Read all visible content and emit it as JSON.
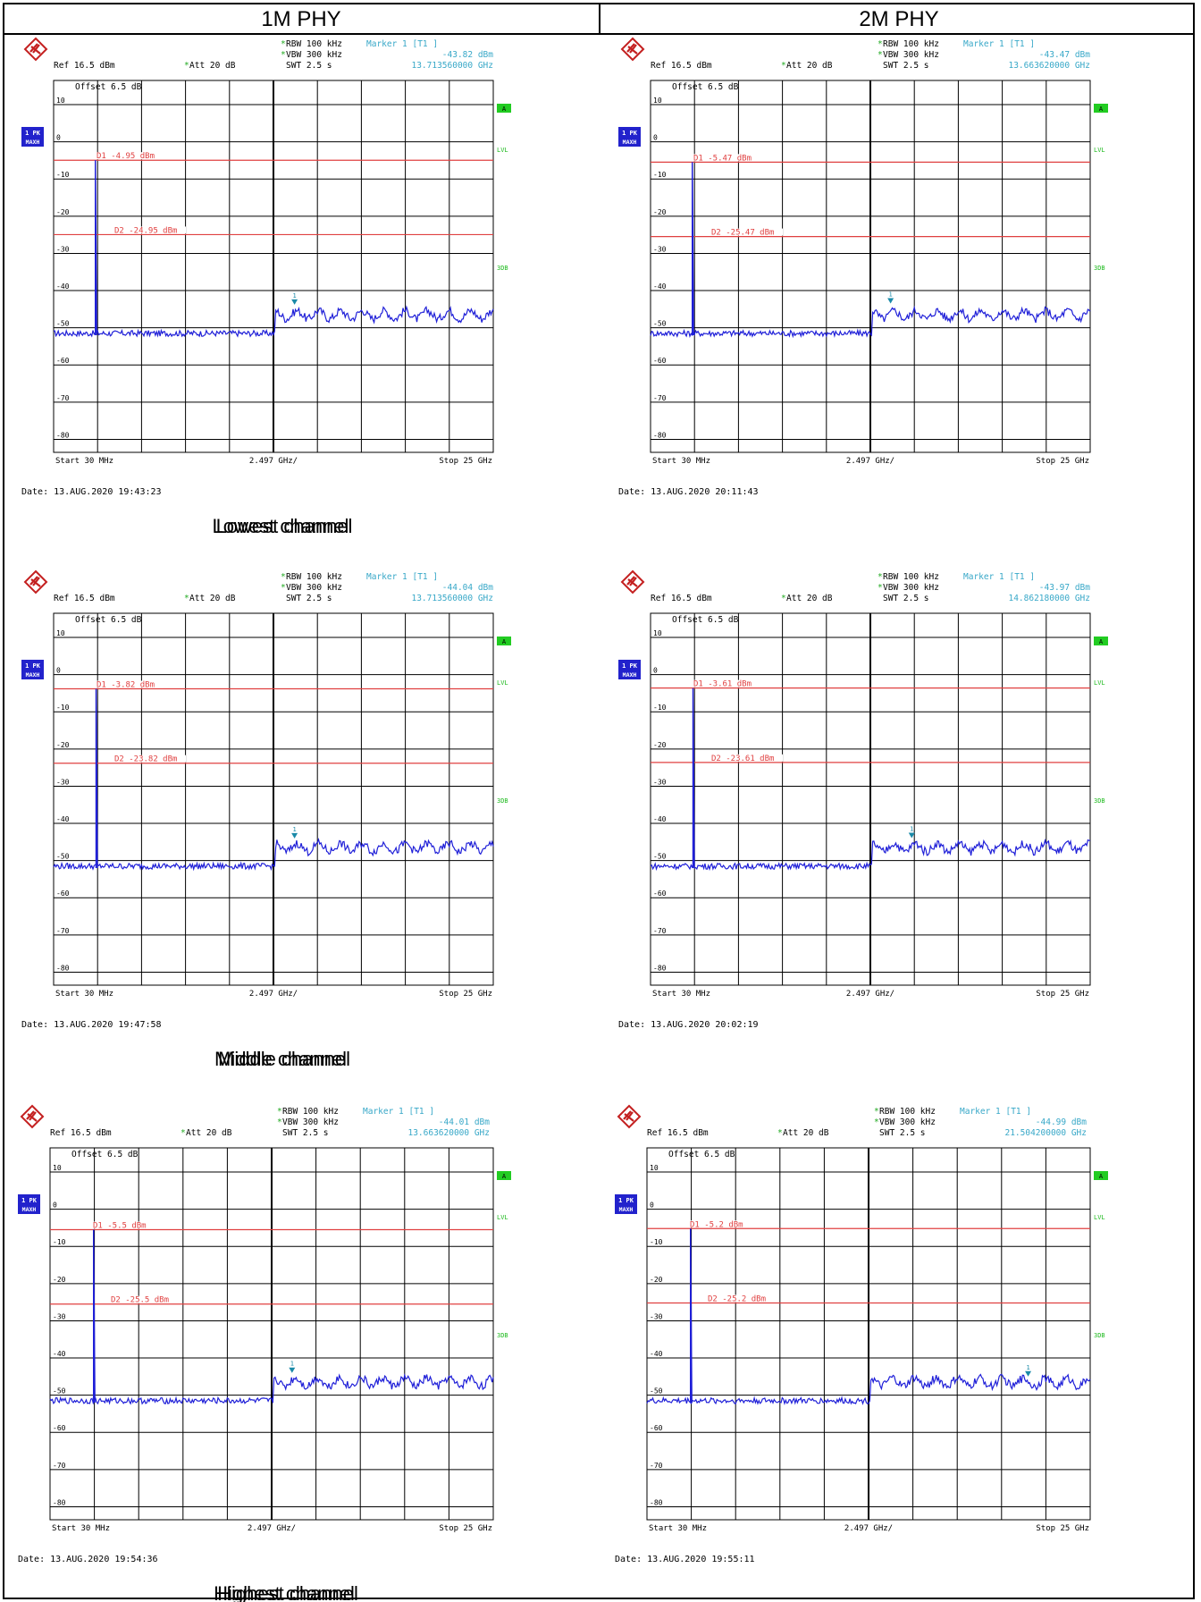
{
  "header": {
    "left_title": "1M PHY",
    "right_title": "2M PHY"
  },
  "common": {
    "rbw": "RBW 100 kHz",
    "vbw": "VBW 300 kHz",
    "swt": "SWT 2.5 s",
    "ref": "Ref  16.5 dBm",
    "att": "Att  20 dB",
    "offset": "Offset  6.5 dB",
    "marker_title": "Marker 1 [T1 ]",
    "trace_tag": "1 PK",
    "trace_mode": "MAXH",
    "side_a": "A",
    "side_lvl": "LVL",
    "side_3db": "3DB",
    "start": "Start 30 MHz",
    "span_div": "2.497 GHz/",
    "stop": "Stop 25 GHz",
    "y_ticks": [
      "10",
      "0",
      "-10",
      "-20",
      "-30",
      "-40",
      "-50",
      "-60",
      "-70",
      "-80"
    ]
  },
  "chart_data": [
    {
      "type": "line",
      "phy": "1M PHY",
      "caption": "Lowest channel",
      "date": "Date: 13.AUG.2020  19:43:23",
      "marker_value": "-43.82 dBm",
      "marker_freq": "13.713560000 GHz",
      "marker_ghz": 13.71356,
      "marker_dbm": -43.82,
      "d1_label": "D1 -4.95 dBm",
      "d1": -4.95,
      "d2_label": "D2 -24.95 dBm",
      "d2": -24.95,
      "xlim": [
        0.03,
        25
      ],
      "ylim": [
        -83.5,
        16.5
      ],
      "peak_ghz": 2.402
    },
    {
      "type": "line",
      "phy": "2M PHY",
      "caption": "Lowest channel",
      "date": "Date: 13.AUG.2020  20:11:43",
      "marker_value": "-43.47 dBm",
      "marker_freq": "13.663620000 GHz",
      "marker_ghz": 13.66362,
      "marker_dbm": -43.47,
      "d1_label": "D1 -5.47 dBm",
      "d1": -5.47,
      "d2_label": "D2 -25.47 dBm",
      "d2": -25.47,
      "xlim": [
        0.03,
        25
      ],
      "ylim": [
        -83.5,
        16.5
      ],
      "peak_ghz": 2.402
    },
    {
      "type": "line",
      "phy": "1M PHY",
      "caption": "Middle channel",
      "date": "Date: 13.AUG.2020  19:47:58",
      "marker_value": "-44.04 dBm",
      "marker_freq": "13.713560000 GHz",
      "marker_ghz": 13.71356,
      "marker_dbm": -44.04,
      "d1_label": "D1 -3.82 dBm",
      "d1": -3.82,
      "d2_label": "D2 -23.82 dBm",
      "d2": -23.82,
      "xlim": [
        0.03,
        25
      ],
      "ylim": [
        -83.5,
        16.5
      ],
      "peak_ghz": 2.44
    },
    {
      "type": "line",
      "phy": "2M PHY",
      "caption": "Middle channel",
      "date": "Date: 13.AUG.2020  20:02:19",
      "marker_value": "-43.97 dBm",
      "marker_freq": "14.862180000 GHz",
      "marker_ghz": 14.86218,
      "marker_dbm": -43.97,
      "d1_label": "D1 -3.61 dBm",
      "d1": -3.61,
      "d2_label": "D2 -23.61 dBm",
      "d2": -23.61,
      "xlim": [
        0.03,
        25
      ],
      "ylim": [
        -83.5,
        16.5
      ],
      "peak_ghz": 2.44
    },
    {
      "type": "line",
      "phy": "1M PHY",
      "caption": "Highest channel",
      "date": "Date: 13.AUG.2020  19:54:36",
      "marker_value": "-44.01 dBm",
      "marker_freq": "13.663620000 GHz",
      "marker_ghz": 13.66362,
      "marker_dbm": -44.01,
      "d1_label": "D1 -5.5 dBm",
      "d1": -5.5,
      "d2_label": "D2 -25.5 dBm",
      "d2": -25.5,
      "xlim": [
        0.03,
        25
      ],
      "ylim": [
        -83.5,
        16.5
      ],
      "peak_ghz": 2.48
    },
    {
      "type": "line",
      "phy": "2M PHY",
      "caption": "Highest channel",
      "date": "Date: 13.AUG.2020  19:55:11",
      "marker_value": "-44.99 dBm",
      "marker_freq": "21.504200000 GHz",
      "marker_ghz": 21.5042,
      "marker_dbm": -44.99,
      "d1_label": "D1 -5.2 dBm",
      "d1": -5.2,
      "d2_label": "D2 -25.2 dBm",
      "d2": -25.2,
      "xlim": [
        0.03,
        25
      ],
      "ylim": [
        -83.5,
        16.5
      ],
      "peak_ghz": 2.48
    }
  ],
  "colors": {
    "trace": "#1f1fd8",
    "limit": "#e04040",
    "marker_text": "#38a8c8",
    "marker": "#1a8aa8",
    "grid": "#000000",
    "badge": "#2222cc",
    "side": "#22cc22"
  }
}
